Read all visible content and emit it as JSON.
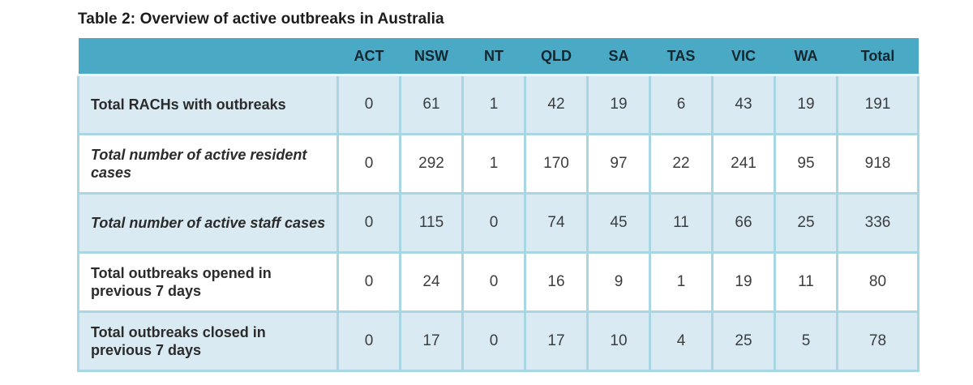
{
  "title": "Table 2: Overview of active outbreaks in Australia",
  "table": {
    "corner_label": "",
    "columns": [
      "ACT",
      "NSW",
      "NT",
      "QLD",
      "SA",
      "TAS",
      "VIC",
      "WA",
      "Total"
    ],
    "rows": [
      {
        "label": "Total RACHs with outbreaks",
        "label_style": "bold",
        "shade": "alt",
        "values": [
          "0",
          "61",
          "1",
          "42",
          "19",
          "6",
          "43",
          "19",
          "191"
        ]
      },
      {
        "label": "Total number of active resident cases",
        "label_style": "bold-italic",
        "shade": "plain",
        "values": [
          "0",
          "292",
          "1",
          "170",
          "97",
          "22",
          "241",
          "95",
          "918"
        ]
      },
      {
        "label": "Total number of active staff cases",
        "label_style": "bold-italic",
        "shade": "alt",
        "values": [
          "0",
          "115",
          "0",
          "74",
          "45",
          "11",
          "66",
          "25",
          "336"
        ]
      },
      {
        "label": "Total outbreaks opened in previous 7 days",
        "label_style": "bold",
        "shade": "plain",
        "values": [
          "0",
          "24",
          "0",
          "16",
          "9",
          "1",
          "19",
          "11",
          "80"
        ]
      },
      {
        "label": "Total outbreaks closed in previous 7 days",
        "label_style": "bold",
        "shade": "alt",
        "values": [
          "0",
          "17",
          "0",
          "17",
          "10",
          "4",
          "25",
          "5",
          "78"
        ]
      }
    ],
    "colors": {
      "header_bg": "#4aa9c5",
      "header_text": "#132731",
      "row_alt_bg": "#d9eaf2",
      "row_plain_bg": "#ffffff",
      "border": "#a9d6e3",
      "value_text": "#3d3d3d",
      "label_text": "#2b2b2b"
    }
  }
}
